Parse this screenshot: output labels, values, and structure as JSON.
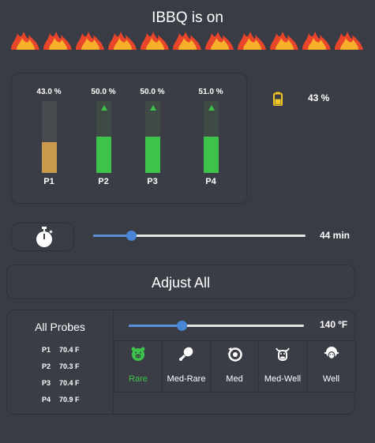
{
  "title": "IBBQ is on",
  "flames_icon": "flames-strip-icon",
  "probes": [
    {
      "name": "P1",
      "percent_text": "43.0 %",
      "level": 0.43,
      "color": "#c89b4a",
      "arrow": false,
      "dim": false
    },
    {
      "name": "P2",
      "percent_text": "50.0 %",
      "level": 0.5,
      "color": "#3ec34a",
      "arrow": true,
      "dim": true
    },
    {
      "name": "P3",
      "percent_text": "50.0 %",
      "level": 0.5,
      "color": "#3ec34a",
      "arrow": true,
      "dim": true
    },
    {
      "name": "P4",
      "percent_text": "51.0 %",
      "level": 0.51,
      "color": "#3ec34a",
      "arrow": true,
      "dim": true
    }
  ],
  "battery": {
    "text": "43 %",
    "level": 0.43,
    "color": "#f3c623"
  },
  "timer": {
    "value_text": "44 min",
    "level": 0.18
  },
  "adjust_all_label": "Adjust All",
  "all_probes": {
    "title": "All Probes",
    "rows": [
      {
        "name": "P1",
        "temp": "70.4 F"
      },
      {
        "name": "P2",
        "temp": "70.3 F"
      },
      {
        "name": "P3",
        "temp": "70.4 F"
      },
      {
        "name": "P4",
        "temp": "70.9 F"
      }
    ]
  },
  "target_temp": {
    "value_text": "140 ºF",
    "level": 0.3
  },
  "doneness": [
    {
      "label": "Rare",
      "icon": "pig-icon",
      "selected": true
    },
    {
      "label": "Med-Rare",
      "icon": "drumstick-icon",
      "selected": false
    },
    {
      "label": "Med",
      "icon": "chicken-icon",
      "selected": false
    },
    {
      "label": "Med-Well",
      "icon": "cow-icon",
      "selected": false
    },
    {
      "label": "Well",
      "icon": "sheep-icon",
      "selected": false
    }
  ],
  "colors": {
    "accent": "#4a86d6",
    "selected": "#3ec34a",
    "background": "#393c44"
  }
}
